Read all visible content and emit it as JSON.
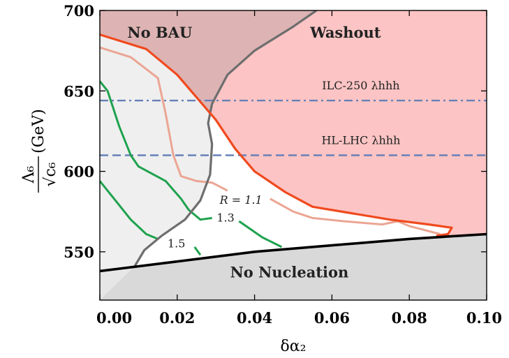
{
  "chart_data": {
    "type": "area",
    "xlabel": "δα₂",
    "ylabel": {
      "numerator": "Λ₆",
      "denominator": "√c₆",
      "unit": "(GeV)"
    },
    "xlim": [
      0.0,
      0.1
    ],
    "ylim": [
      520,
      700
    ],
    "xticks": [
      "0.00",
      "0.02",
      "0.04",
      "0.06",
      "0.08",
      "0.10"
    ],
    "yticks": [
      "550",
      "600",
      "650",
      "700"
    ],
    "xtick_values": [
      0.0,
      0.02,
      0.04,
      0.06,
      0.08,
      0.1
    ],
    "ytick_values": [
      550,
      600,
      650,
      700
    ],
    "colors": {
      "washout": "#fcc4c4",
      "no_bau": "#ddb3b3",
      "no_nucleation": "#d9d9d9",
      "bau_excluded": "#e9e9e9",
      "washout_boundary": "#f04a1e",
      "r_contour_1_1": "#eba593",
      "r_contours_green": "#1ea24e",
      "no_bau_boundary": "#6e6e6e",
      "nucleation_boundary": "#000000",
      "reference_lines": "#6680b8"
    },
    "regions": [
      {
        "name": "No BAU",
        "label_x": 0.0155,
        "label_y": 683
      },
      {
        "name": "Washout",
        "label_x": 0.0635,
        "label_y": 683
      },
      {
        "name": "No Nucleation",
        "label_x": 0.049,
        "label_y": 534
      }
    ],
    "curves": {
      "nucleation_boundary": [
        [
          0.0,
          538
        ],
        [
          0.02,
          544
        ],
        [
          0.04,
          550
        ],
        [
          0.06,
          554
        ],
        [
          0.08,
          558
        ],
        [
          0.1,
          561
        ]
      ],
      "washout_boundary": [
        [
          0.0,
          685
        ],
        [
          0.012,
          676
        ],
        [
          0.02,
          660
        ],
        [
          0.025,
          646
        ],
        [
          0.03,
          632
        ],
        [
          0.035,
          614
        ],
        [
          0.04,
          600
        ],
        [
          0.048,
          587
        ],
        [
          0.055,
          578
        ],
        [
          0.065,
          574
        ],
        [
          0.075,
          570
        ],
        [
          0.085,
          567
        ],
        [
          0.091,
          565
        ],
        [
          0.09,
          561
        ],
        [
          0.087,
          560
        ]
      ],
      "no_bau_boundary": [
        [
          0.009,
          541
        ],
        [
          0.0115,
          551
        ],
        [
          0.016,
          560
        ],
        [
          0.022,
          570
        ],
        [
          0.026,
          582
        ],
        [
          0.0285,
          598
        ],
        [
          0.029,
          617
        ],
        [
          0.028,
          630
        ],
        [
          0.029,
          642
        ],
        [
          0.033,
          660
        ],
        [
          0.04,
          675
        ],
        [
          0.05,
          690
        ],
        [
          0.056,
          700
        ]
      ],
      "r_contours": [
        {
          "label": "R = 1.1",
          "label_x": 0.0365,
          "label_y": 582,
          "points": [
            [
              0.0,
              677
            ],
            [
              0.008,
              671
            ],
            [
              0.015,
              658
            ],
            [
              0.017,
              636
            ],
            [
              0.019,
              610
            ],
            [
              0.021,
              597
            ],
            [
              0.025,
              594
            ],
            [
              0.029,
              593
            ],
            [
              0.033,
              588
            ]
          ],
          "points2": [
            [
              0.044,
              583
            ],
            [
              0.05,
              575
            ],
            [
              0.055,
              571
            ],
            [
              0.063,
              569
            ],
            [
              0.073,
              567
            ],
            [
              0.077,
              569
            ],
            [
              0.08,
              566
            ],
            [
              0.088,
              561
            ]
          ]
        },
        {
          "label": "1.3",
          "label_x": 0.0325,
          "label_y": 571,
          "points": [
            [
              0.0,
              656
            ],
            [
              0.002,
              650
            ],
            [
              0.005,
              628
            ],
            [
              0.008,
              610
            ],
            [
              0.01,
              603
            ],
            [
              0.017,
              594
            ],
            [
              0.021,
              583
            ],
            [
              0.023,
              576
            ],
            [
              0.026,
              570
            ],
            [
              0.029,
              571
            ]
          ],
          "points2": [
            [
              0.036,
              569
            ],
            [
              0.042,
              559
            ],
            [
              0.047,
              553
            ]
          ]
        },
        {
          "label": "1.5",
          "label_x": 0.0198,
          "label_y": 555,
          "points": [
            [
              0.0,
              594
            ],
            [
              0.004,
              582
            ],
            [
              0.008,
              570
            ],
            [
              0.012,
              561
            ],
            [
              0.015,
              558
            ]
          ],
          "points2": [
            [
              0.0245,
              553
            ],
            [
              0.026,
              548
            ]
          ]
        }
      ]
    },
    "reference_lines": [
      {
        "label": "ILC-250 λhhh",
        "y": 644,
        "style": "dash-dot",
        "label_x": 0.0675,
        "label_y": 651
      },
      {
        "label": "HL-LHC λhhh",
        "y": 610,
        "style": "dashed",
        "label_x": 0.0675,
        "label_y": 617
      }
    ]
  }
}
